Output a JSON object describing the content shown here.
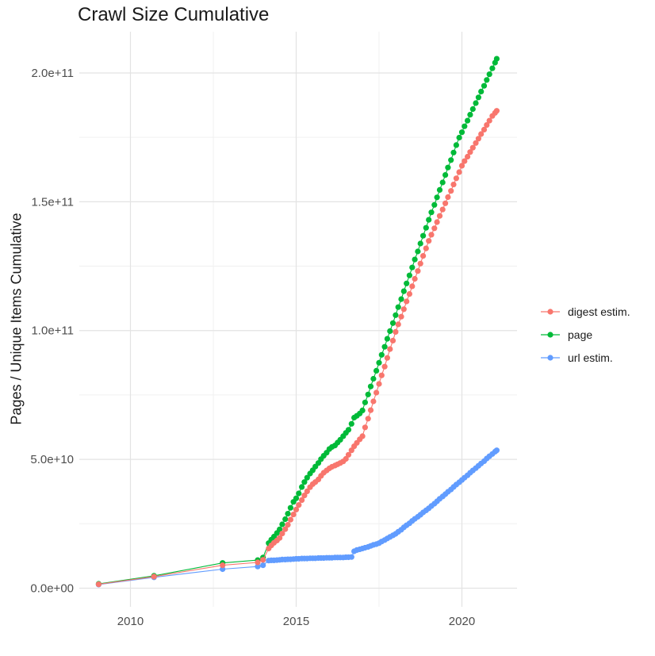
{
  "chart_data": {
    "type": "line",
    "title": "Crawl Size Cumulative",
    "xlabel": "",
    "ylabel": "Pages / Unique Items Cumulative",
    "y_unit": "items (values in billions, 1e9)",
    "grid": "on",
    "legend_position": "right",
    "background": "#ffffff",
    "colors": {
      "grid_major": "#e3e3e3",
      "grid_minor": "#f0f0f0",
      "tick_text": "#4d4d4d",
      "title_text": "#1a1a1a"
    },
    "x_range": [
      2008.457,
      2021.663
    ],
    "y_range_e9": [
      -7.24,
      216.01
    ],
    "x_ticks": [
      {
        "label": "2010",
        "value": 2010
      },
      {
        "label": "2015",
        "value": 2015
      },
      {
        "label": "2020",
        "value": 2020
      }
    ],
    "y_ticks": [
      {
        "label": "0.0e+00",
        "value": 0
      },
      {
        "label": "5.0e+10",
        "value": 50
      },
      {
        "label": "1.0e+11",
        "value": 100
      },
      {
        "label": "1.5e+11",
        "value": 150
      },
      {
        "label": "2.0e+11",
        "value": 200
      }
    ],
    "x_minor": [
      2012.5,
      2017.5
    ],
    "y_minor": [
      25,
      75,
      125,
      175
    ],
    "x": [
      2009.04,
      2010.71,
      2012.78,
      2013.84,
      2014.0,
      2014.17,
      2014.25,
      2014.33,
      2014.42,
      2014.5,
      2014.58,
      2014.67,
      2014.75,
      2014.83,
      2014.92,
      2015.0,
      2015.08,
      2015.17,
      2015.25,
      2015.33,
      2015.42,
      2015.5,
      2015.58,
      2015.67,
      2015.75,
      2015.83,
      2015.92,
      2016.0,
      2016.08,
      2016.17,
      2016.25,
      2016.33,
      2016.42,
      2016.5,
      2016.58,
      2016.67,
      2016.75,
      2016.83,
      2016.92,
      2017.0,
      2017.08,
      2017.17,
      2017.25,
      2017.33,
      2017.42,
      2017.5,
      2017.58,
      2017.67,
      2017.75,
      2017.83,
      2017.92,
      2018.0,
      2018.08,
      2018.17,
      2018.25,
      2018.33,
      2018.42,
      2018.5,
      2018.58,
      2018.67,
      2018.75,
      2018.83,
      2018.92,
      2019.0,
      2019.08,
      2019.17,
      2019.25,
      2019.33,
      2019.42,
      2019.5,
      2019.58,
      2019.67,
      2019.75,
      2019.83,
      2019.92,
      2020.0,
      2020.08,
      2020.17,
      2020.25,
      2020.33,
      2020.42,
      2020.5,
      2020.58,
      2020.67,
      2020.75,
      2020.83,
      2020.92,
      2021.0,
      2021.05
    ],
    "series": [
      {
        "name": "digest estim.",
        "color": "#F8766D",
        "values_e9": [
          1.5,
          4.5,
          8.9,
          10.0,
          11.0,
          15.4,
          16.6,
          17.6,
          18.5,
          19.5,
          21.2,
          22.9,
          24.6,
          26.6,
          28.6,
          30.5,
          32.3,
          34.2,
          36.0,
          37.6,
          39.2,
          40.4,
          41.2,
          42.2,
          43.6,
          44.8,
          45.7,
          46.5,
          47.1,
          47.6,
          48.1,
          48.6,
          49.2,
          50.2,
          51.8,
          53.5,
          55.1,
          56.4,
          57.8,
          59.0,
          62.4,
          65.8,
          69.1,
          72.5,
          75.9,
          79.3,
          82.6,
          86.0,
          89.4,
          92.8,
          96.1,
          99.5,
          102.4,
          105.4,
          108.3,
          111.3,
          114.2,
          117.2,
          120.1,
          123.1,
          126.0,
          129.0,
          131.9,
          134.8,
          137.2,
          139.7,
          142.1,
          144.5,
          147.0,
          149.4,
          151.8,
          154.2,
          156.7,
          159.1,
          161.5,
          164.0,
          165.8,
          167.5,
          169.3,
          171.0,
          172.8,
          174.5,
          176.3,
          178.0,
          179.8,
          181.5,
          183.3,
          184.5,
          185.3
        ]
      },
      {
        "name": "page",
        "color": "#00BA38",
        "values_e9": [
          1.7,
          4.8,
          9.8,
          10.9,
          11.9,
          17.5,
          18.8,
          20.0,
          21.4,
          22.8,
          24.8,
          26.8,
          28.9,
          31.2,
          33.5,
          34.9,
          36.8,
          39.3,
          41.2,
          42.9,
          44.5,
          45.8,
          47.2,
          48.6,
          50.1,
          51.4,
          52.6,
          54.0,
          54.8,
          55.4,
          56.5,
          57.6,
          59.0,
          60.3,
          61.5,
          63.8,
          66.2,
          66.9,
          67.8,
          69.0,
          72.1,
          75.2,
          78.3,
          81.3,
          84.4,
          87.5,
          90.6,
          93.7,
          96.8,
          99.8,
          102.9,
          106.0,
          109.1,
          112.2,
          115.3,
          118.3,
          121.4,
          124.5,
          127.6,
          130.7,
          133.8,
          136.8,
          139.9,
          143.0,
          145.9,
          148.8,
          151.7,
          154.6,
          157.5,
          160.4,
          163.3,
          166.2,
          169.1,
          172.0,
          174.9,
          177.0,
          179.3,
          181.5,
          183.8,
          186.0,
          188.3,
          190.5,
          192.8,
          195.0,
          197.3,
          199.5,
          201.8,
          204.0,
          205.5
        ]
      },
      {
        "name": "url estim.",
        "color": "#619CFF",
        "values_e9": [
          1.4,
          4.2,
          7.4,
          8.4,
          8.9,
          10.7,
          10.8,
          10.8,
          10.9,
          11.0,
          11.1,
          11.1,
          11.2,
          11.2,
          11.3,
          11.4,
          11.4,
          11.5,
          11.5,
          11.5,
          11.6,
          11.6,
          11.6,
          11.7,
          11.7,
          11.7,
          11.8,
          11.8,
          11.8,
          11.9,
          11.9,
          11.9,
          11.9,
          12.0,
          12.0,
          12.1,
          14.3,
          14.8,
          15.1,
          15.4,
          15.7,
          16.0,
          16.4,
          16.8,
          17.1,
          17.5,
          18.1,
          18.7,
          19.3,
          19.9,
          20.5,
          21.1,
          21.9,
          22.7,
          23.6,
          24.4,
          25.2,
          26.1,
          26.9,
          27.7,
          28.5,
          29.4,
          30.2,
          31.0,
          31.9,
          32.8,
          33.7,
          34.7,
          35.6,
          36.5,
          37.4,
          38.3,
          39.3,
          40.2,
          41.1,
          42.0,
          42.9,
          43.8,
          44.8,
          45.7,
          46.6,
          47.5,
          48.4,
          49.3,
          50.3,
          51.2,
          52.1,
          53.0,
          53.5
        ]
      }
    ]
  }
}
